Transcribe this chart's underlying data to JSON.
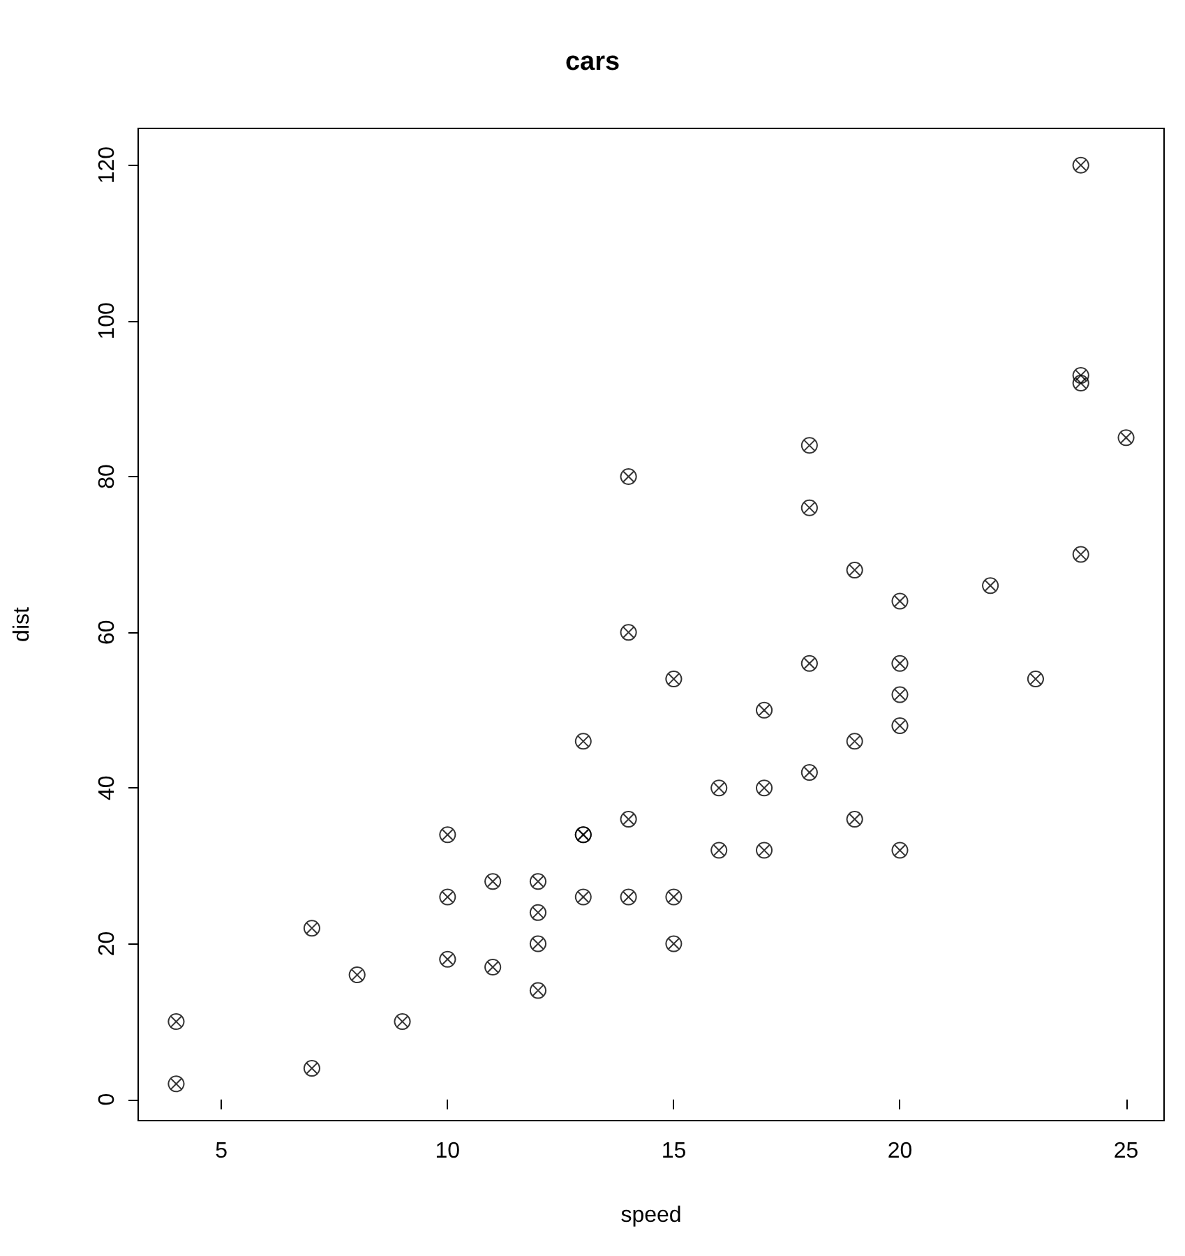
{
  "chart_data": {
    "type": "scatter",
    "title": "cars",
    "xlabel": "speed",
    "ylabel": "dist",
    "x": [
      4,
      4,
      7,
      7,
      8,
      9,
      10,
      10,
      10,
      11,
      11,
      12,
      12,
      12,
      12,
      13,
      13,
      13,
      13,
      14,
      14,
      14,
      14,
      15,
      15,
      15,
      16,
      16,
      17,
      17,
      17,
      18,
      18,
      18,
      18,
      19,
      19,
      19,
      20,
      20,
      20,
      20,
      20,
      22,
      23,
      24,
      24,
      24,
      24,
      25
    ],
    "values": [
      2,
      10,
      4,
      22,
      16,
      10,
      18,
      26,
      34,
      17,
      28,
      14,
      20,
      24,
      28,
      26,
      34,
      34,
      46,
      26,
      36,
      60,
      80,
      20,
      26,
      54,
      32,
      40,
      32,
      40,
      50,
      42,
      56,
      76,
      84,
      36,
      46,
      68,
      32,
      48,
      52,
      56,
      64,
      66,
      54,
      70,
      92,
      93,
      120,
      85
    ],
    "color": "#000000",
    "marker": "cross",
    "xlim": [
      3.16,
      25.84
    ],
    "xticks": [
      5,
      10,
      15,
      20,
      25
    ],
    "ylim": [
      -2.72,
      124.72
    ],
    "yticks": [
      0,
      20,
      40,
      60,
      80,
      100,
      120
    ],
    "grid": false
  }
}
